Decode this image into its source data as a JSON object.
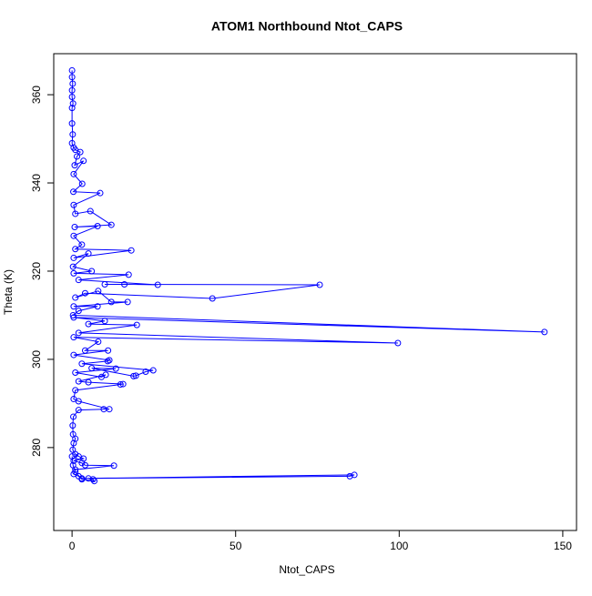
{
  "chart_data": {
    "type": "line",
    "title": "ATOM1 Northbound Ntot_CAPS",
    "x_label": "Ntot_CAPS",
    "y_label": "Theta (K)",
    "color": "#0000ff",
    "markers": true,
    "xlim": [
      -5.6,
      154.2
    ],
    "ylim": [
      261.2,
      369.3
    ],
    "xticks": [
      0,
      50,
      100,
      150
    ],
    "yticks": [
      280,
      300,
      320,
      340,
      360
    ],
    "x": [
      0,
      0,
      0.2,
      0,
      0,
      0.3,
      0,
      0,
      0.2,
      0,
      0.5,
      1,
      2.5,
      1.5,
      0.8,
      3.5,
      0.5,
      3.1,
      0.4,
      8.6,
      0.5,
      1,
      5.6,
      12,
      0.8,
      7.8,
      0.5,
      3,
      1,
      18.1,
      0.5,
      5,
      0.3,
      6,
      0.5,
      17.3,
      2,
      26.2,
      16,
      10,
      75.7,
      42.9,
      4,
      1,
      8,
      12,
      17,
      0.5,
      7.8,
      2,
      0.3,
      144.4,
      0.5,
      10,
      5,
      19.8,
      2,
      99.6,
      0.5,
      8,
      4,
      11,
      0.5,
      11.4,
      10.9,
      3,
      24.8,
      22.5,
      19.5,
      18.8,
      6,
      13.4,
      1,
      9,
      10.3,
      2,
      5,
      15.6,
      14.8,
      1,
      0.5,
      2,
      11.4,
      9.7,
      2,
      0.4,
      0.2,
      0.3,
      1,
      0.5,
      0.2,
      1,
      2,
      3.5,
      0.5,
      3,
      4,
      12.8,
      1,
      0.5,
      2,
      3,
      86.3,
      84.9,
      5,
      6.4,
      6.8,
      3,
      1,
      0.3,
      0
    ],
    "values": [
      365.5,
      364,
      362.5,
      361,
      359.5,
      358,
      357,
      353.5,
      351,
      349,
      348,
      347.5,
      347,
      346,
      344,
      345,
      342,
      339.8,
      338,
      337.7,
      335,
      333,
      333.6,
      330.5,
      330,
      330.2,
      328,
      326,
      325,
      324.7,
      323,
      324,
      321,
      320,
      319.5,
      319.2,
      318,
      316.9,
      317,
      317,
      316.9,
      313.8,
      315,
      314,
      315.5,
      313,
      313,
      312,
      312,
      311,
      310,
      306.2,
      309.5,
      308.7,
      308,
      307.8,
      306,
      303.7,
      305,
      304,
      302,
      302,
      301,
      299.8,
      299.6,
      299,
      297.5,
      297.2,
      296.3,
      296.2,
      298,
      297.9,
      297,
      296,
      296.5,
      295,
      294.8,
      294.4,
      294.3,
      293,
      291,
      290.5,
      288.7,
      288.7,
      288.5,
      287,
      285,
      283,
      282,
      281,
      279.5,
      278.5,
      278,
      277.5,
      277,
      276.5,
      276,
      275.9,
      275,
      274,
      273.5,
      273,
      273.8,
      273.5,
      273,
      272.8,
      272.4,
      272.8,
      274.5,
      276,
      278
    ]
  }
}
